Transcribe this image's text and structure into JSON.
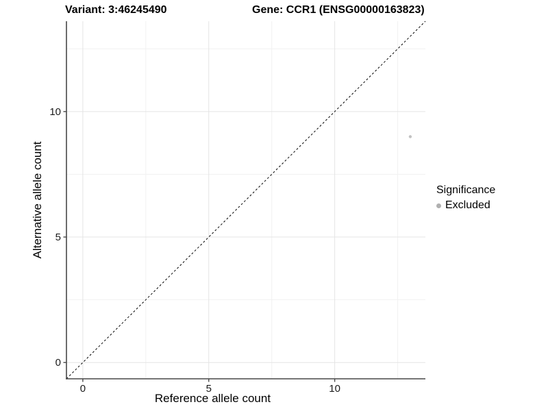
{
  "chart_data": {
    "type": "scatter",
    "titles": {
      "variant": "Variant: 3:46245490",
      "gene": "Gene: CCR1 (ENSG00000163823)"
    },
    "xlabel": "Reference allele count",
    "ylabel": "Alternative allele count",
    "xlim": [
      -0.65,
      13.6
    ],
    "ylim": [
      -0.65,
      13.6
    ],
    "x_major_ticks": [
      0,
      5,
      10
    ],
    "y_major_ticks": [
      0,
      5,
      10
    ],
    "x_minor_ticks": [
      2.5,
      7.5,
      12.5
    ],
    "y_minor_ticks": [
      2.5,
      7.5,
      12.5
    ],
    "grid": "major+minor",
    "identity_line": {
      "slope": 1,
      "intercept": 0,
      "style": "dashed",
      "color": "#000000"
    },
    "series": [
      {
        "name": "Excluded",
        "color": "#c2c2c2",
        "points": [
          {
            "x": 13,
            "y": 9
          }
        ]
      }
    ],
    "legend": {
      "title": "Significance",
      "position": "right",
      "items": [
        {
          "label": "Excluded",
          "color": "#b0b0b0",
          "marker": "circle"
        }
      ]
    }
  },
  "colors": {
    "background": "#ffffff",
    "axis_line": "#464646",
    "tick_label": "#1a1a1a",
    "grid_major": "#e4e4e4",
    "grid_minor": "#f1f1f1"
  }
}
